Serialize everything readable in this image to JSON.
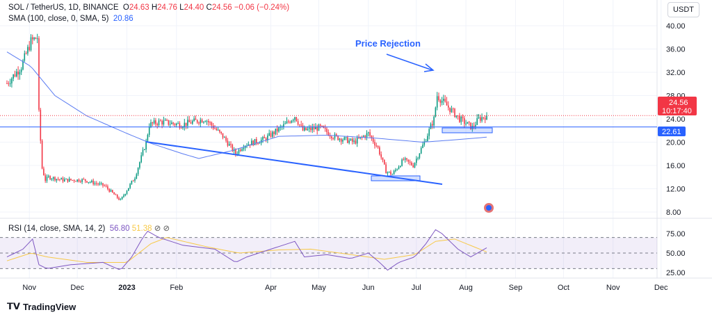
{
  "header": {
    "symbol": "SOL / TetherUS, 1D, BINANCE",
    "o_label": "O",
    "o": "24.63",
    "h_label": "H",
    "h": "24.76",
    "l_label": "L",
    "l": "24.40",
    "c_label": "C",
    "c": "24.56",
    "change": "−0.06 (−0.24%)",
    "sma_label": "SMA (100, close, 0, SMA, 5)",
    "sma_value": "20.86"
  },
  "rsi_legend": {
    "label": "RSI (14, close, SMA, 14, 2)",
    "rsi": "56.80",
    "sma": "51.38"
  },
  "currency_button": "USDT",
  "price_tag": {
    "price": "24.56",
    "countdown": "10:17:40"
  },
  "hline_tag": "22.61",
  "annotation": "Price Rejection",
  "brand": "TradingView",
  "colors": {
    "up": "#089981",
    "down": "#f23645",
    "sma": "#5b7cf2",
    "drawing": "#2962ff",
    "rsi": "#7e57c2",
    "rsi_sma": "#f7c948"
  },
  "chart_data": {
    "type": "candlestick",
    "price_ticks": [
      "40.00",
      "36.00",
      "32.00",
      "28.00",
      "24.00",
      "20.00",
      "16.00",
      "12.00",
      "8.00"
    ],
    "price_tick_values": [
      40,
      36,
      32,
      28,
      24,
      20,
      16,
      12,
      8
    ],
    "ylim": [
      8,
      40
    ],
    "rsi_ticks": [
      "75.00",
      "50.00",
      "25.00"
    ],
    "rsi_tick_values": [
      75,
      50,
      25
    ],
    "rsi_band": [
      30,
      70
    ],
    "x_labels": [
      "Nov",
      "Dec",
      "2023",
      "Feb",
      "Apr",
      "May",
      "Jun",
      "Jul",
      "Aug",
      "Sep",
      "Oct",
      "Nov",
      "Dec"
    ],
    "x_label_days": [
      14,
      44,
      75,
      106,
      165,
      195,
      226,
      256,
      287,
      318,
      348,
      379,
      409
    ],
    "close_anchors": [
      [
        0,
        30.1
      ],
      [
        9,
        33
      ],
      [
        15,
        37.3
      ],
      [
        19,
        38
      ],
      [
        20,
        25
      ],
      [
        22,
        15.5
      ],
      [
        24,
        13.5
      ],
      [
        26,
        14
      ],
      [
        35,
        13.5
      ],
      [
        48,
        13.5
      ],
      [
        61,
        12.5
      ],
      [
        71,
        10
      ],
      [
        80,
        14
      ],
      [
        87,
        20
      ],
      [
        89,
        23
      ],
      [
        96,
        23.5
      ],
      [
        109,
        23
      ],
      [
        124,
        24
      ],
      [
        135,
        21
      ],
      [
        143,
        18
      ],
      [
        148,
        19.5
      ],
      [
        161,
        20.5
      ],
      [
        174,
        23
      ],
      [
        180,
        24.5
      ],
      [
        185,
        22
      ],
      [
        196,
        22.5
      ],
      [
        204,
        21
      ],
      [
        217,
        20
      ],
      [
        226,
        21.5
      ],
      [
        232,
        19
      ],
      [
        237,
        15
      ],
      [
        241,
        14.5
      ],
      [
        248,
        17
      ],
      [
        254,
        16
      ],
      [
        261,
        20
      ],
      [
        267,
        24
      ],
      [
        269,
        28
      ],
      [
        276,
        26
      ],
      [
        283,
        24
      ],
      [
        291,
        22.5
      ],
      [
        295,
        24
      ],
      [
        300,
        24.56
      ]
    ],
    "sma_anchors": [
      [
        0,
        35.5
      ],
      [
        15,
        33
      ],
      [
        30,
        28
      ],
      [
        50,
        24.5
      ],
      [
        75,
        21.5
      ],
      [
        90,
        19.8
      ],
      [
        110,
        18
      ],
      [
        120,
        17.2
      ],
      [
        140,
        18.5
      ],
      [
        170,
        21
      ],
      [
        200,
        21.2
      ],
      [
        230,
        20.7
      ],
      [
        260,
        20
      ],
      [
        280,
        20.4
      ],
      [
        300,
        20.86
      ]
    ],
    "rsi_anchors": [
      [
        0,
        45
      ],
      [
        10,
        55
      ],
      [
        16,
        68
      ],
      [
        20,
        35
      ],
      [
        25,
        30
      ],
      [
        40,
        35
      ],
      [
        60,
        38
      ],
      [
        71,
        28
      ],
      [
        78,
        45
      ],
      [
        85,
        70
      ],
      [
        88,
        78
      ],
      [
        95,
        70
      ],
      [
        110,
        60
      ],
      [
        130,
        55
      ],
      [
        143,
        38
      ],
      [
        150,
        45
      ],
      [
        165,
        55
      ],
      [
        180,
        65
      ],
      [
        186,
        45
      ],
      [
        200,
        48
      ],
      [
        215,
        43
      ],
      [
        226,
        50
      ],
      [
        233,
        38
      ],
      [
        238,
        28
      ],
      [
        245,
        38
      ],
      [
        255,
        45
      ],
      [
        262,
        62
      ],
      [
        268,
        80
      ],
      [
        272,
        75
      ],
      [
        282,
        55
      ],
      [
        290,
        45
      ],
      [
        300,
        56.8
      ]
    ],
    "rsi_sma_anchors": [
      [
        0,
        40
      ],
      [
        15,
        50
      ],
      [
        25,
        45
      ],
      [
        50,
        38
      ],
      [
        75,
        38
      ],
      [
        90,
        62
      ],
      [
        100,
        70
      ],
      [
        125,
        58
      ],
      [
        145,
        50
      ],
      [
        170,
        54
      ],
      [
        190,
        55
      ],
      [
        215,
        48
      ],
      [
        236,
        42
      ],
      [
        255,
        48
      ],
      [
        268,
        65
      ],
      [
        280,
        68
      ],
      [
        300,
        51.4
      ]
    ],
    "last_price": 24.56,
    "hline": 22.61
  }
}
